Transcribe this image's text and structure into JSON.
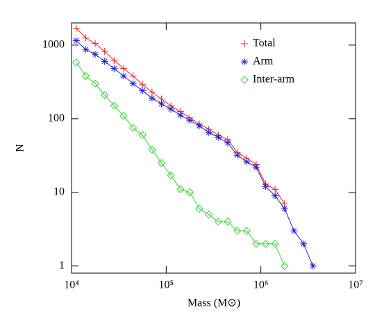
{
  "chart_data": {
    "type": "line",
    "xlabel": "Mass (M⊙)",
    "ylabel": "N",
    "xlog": true,
    "ylog": true,
    "xlim": [
      10000,
      10000000
    ],
    "ylim": [
      0.8,
      2000
    ],
    "xticks": [
      {
        "value": 10000,
        "label": "10⁴"
      },
      {
        "value": 100000,
        "label": "10⁵"
      },
      {
        "value": 1000000,
        "label": "10⁶"
      },
      {
        "value": 10000000,
        "label": "10⁷"
      }
    ],
    "yticks": [
      1,
      10,
      100,
      1000
    ],
    "legend": "upper right",
    "series": [
      {
        "name": "Total",
        "color": "#e8202a",
        "marker": "plus",
        "x": [
          11220,
          14125,
          17783,
          22387,
          28184,
          35481,
          44668,
          56234,
          70795,
          89125,
          112202,
          141254,
          177828,
          223872,
          281838,
          354813,
          446684,
          562341,
          707946,
          891251,
          1122018,
          1412538,
          1778279
        ],
        "values": [
          1700,
          1250,
          1050,
          820,
          620,
          480,
          380,
          290,
          230,
          185,
          150,
          125,
          103,
          85,
          72,
          60,
          52,
          35,
          29,
          24,
          13,
          11,
          7
        ]
      },
      {
        "name": "Arm",
        "color": "#1f1fd6",
        "marker": "asterisk",
        "x": [
          11220,
          14125,
          17783,
          22387,
          28184,
          35481,
          44668,
          56234,
          70795,
          89125,
          112202,
          141254,
          177828,
          223872,
          281838,
          354813,
          446684,
          562341,
          707946,
          891251,
          1122018,
          1412538,
          1778279,
          2238721,
          2818383,
          3548134
        ],
        "values": [
          1150,
          870,
          750,
          600,
          480,
          380,
          300,
          240,
          190,
          160,
          135,
          112,
          95,
          80,
          65,
          56,
          47,
          32,
          26,
          22,
          12,
          9,
          6,
          3,
          2,
          1
        ]
      },
      {
        "name": "Inter-arm",
        "color": "#2ed62e",
        "marker": "diamond",
        "x": [
          11220,
          14125,
          17783,
          22387,
          28184,
          35481,
          44668,
          56234,
          70795,
          89125,
          112202,
          141254,
          177828,
          223872,
          281838,
          354813,
          446684,
          562341,
          707946,
          891251,
          1122018,
          1412538,
          1778279
        ],
        "values": [
          580,
          380,
          300,
          210,
          150,
          110,
          75,
          60,
          38,
          25,
          17,
          11,
          10,
          6,
          5,
          4,
          4,
          3,
          3,
          2,
          2,
          2,
          1
        ]
      }
    ]
  }
}
